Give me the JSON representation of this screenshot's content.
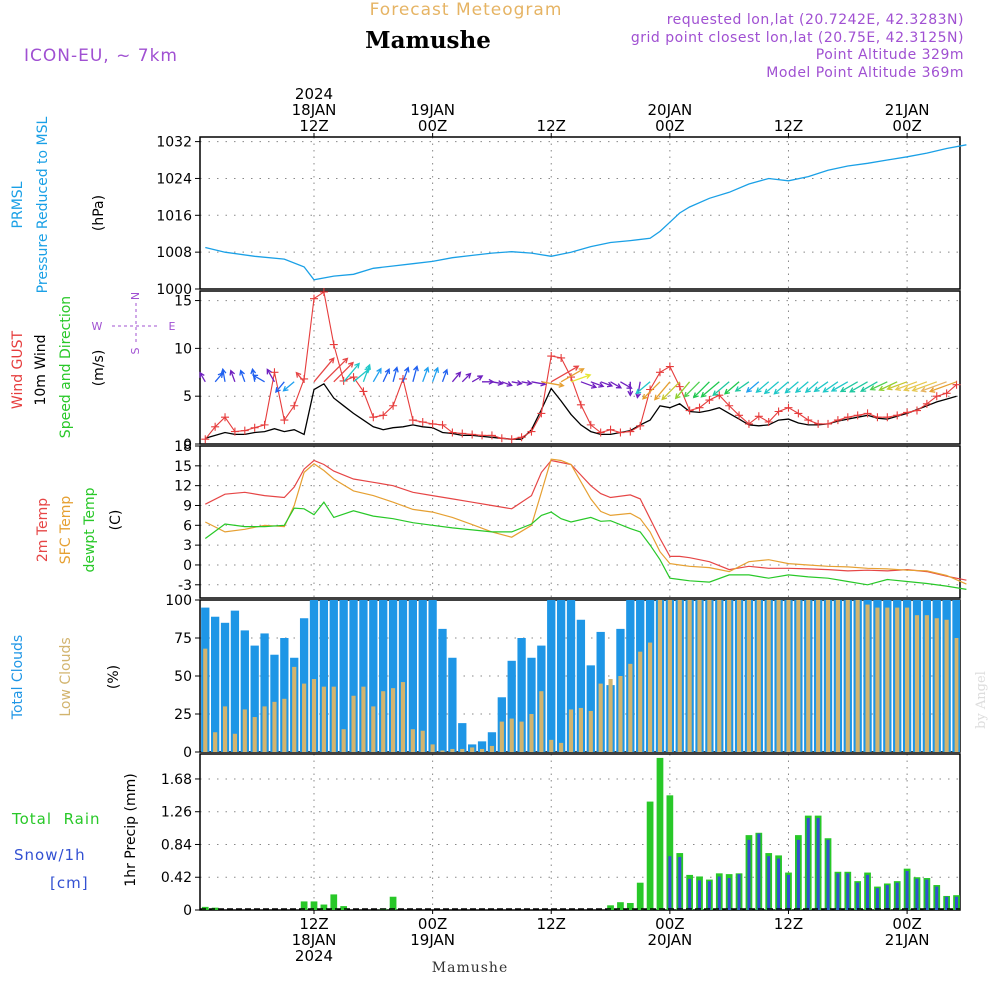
{
  "header": {
    "product": "Forecast Meteogram",
    "location": "Mamushe",
    "model": "ICON-EU, ~ 7km",
    "requested": "requested lon,lat (20.7242E, 42.3283N)",
    "gridpoint": "grid point closest lon,lat (20.75E, 42.3125N)",
    "point_alt": "Point Altitude 329m",
    "model_alt": "Model Point Altitude 369m",
    "footer": "Mamushe",
    "credit": "by Angel"
  },
  "time_axis": {
    "top": [
      {
        "hour": 12,
        "lines": [
          "2024",
          "18JAN",
          "12Z"
        ]
      },
      {
        "hour": 24,
        "lines": [
          "19JAN",
          "00Z"
        ]
      },
      {
        "hour": 36,
        "lines": [
          "12Z"
        ]
      },
      {
        "hour": 48,
        "lines": [
          "20JAN",
          "00Z"
        ]
      },
      {
        "hour": 60,
        "lines": [
          "12Z"
        ]
      },
      {
        "hour": 72,
        "lines": [
          "21JAN",
          "00Z"
        ]
      }
    ],
    "bottom": [
      {
        "hour": 12,
        "lines": [
          "12Z",
          "18JAN",
          "2024"
        ]
      },
      {
        "hour": 24,
        "lines": [
          "00Z",
          "19JAN"
        ]
      },
      {
        "hour": 36,
        "lines": [
          "12Z"
        ]
      },
      {
        "hour": 48,
        "lines": [
          "00Z",
          "20JAN"
        ]
      },
      {
        "hour": 60,
        "lines": [
          "12Z"
        ]
      },
      {
        "hour": 72,
        "lines": [
          "00Z",
          "21JAN"
        ]
      }
    ]
  },
  "panels": {
    "pressure": {
      "labels": [
        "PRMSL",
        "Pressure Reduced to MSL"
      ],
      "unit": "(hPa)",
      "ticks": [
        "1000",
        "1008",
        "1016",
        "1024",
        "1032"
      ]
    },
    "wind": {
      "labels": [
        "Wind GUST",
        "10m Wind",
        "Speed and Direction"
      ],
      "unit": "(m/s)",
      "ticks": [
        "0",
        "5",
        "10",
        "15"
      ],
      "compass": {
        "w": "W",
        "e": "E",
        "n": "N",
        "s": "S"
      }
    },
    "temp": {
      "labels": [
        "2m Temp",
        "SFC Temp",
        "dewpt Temp"
      ],
      "unit": "(C)",
      "ticks": [
        "-3",
        "0",
        "3",
        "6",
        "9",
        "12",
        "15",
        "18"
      ]
    },
    "clouds": {
      "labels": [
        "Total Clouds",
        "Low Clouds"
      ],
      "unit": "(%)",
      "ticks": [
        "0",
        "25",
        "50",
        "75",
        "100"
      ]
    },
    "precip": {
      "labels": [
        "Total  Rain",
        "Snow/1h",
        "[cm]"
      ],
      "axis_label": "1hr Precip (mm)",
      "ticks": [
        "0",
        "0.42",
        "0.84",
        "1.26",
        "1.68"
      ]
    }
  },
  "colors": {
    "pressure": "#1aa0e6",
    "gust": "#e63c3c",
    "wind": "#000000",
    "temp2m": "#e64646",
    "sfc": "#e6a032",
    "dewpt": "#28c828",
    "total_cloud": "#1e96e6",
    "low_cloud": "#d2b46e",
    "rain": "#28c828",
    "snow": "#3250d2",
    "title_orange": "#e6b464",
    "purple": "#a050d2"
  },
  "chart_data": {
    "type": "line",
    "x_unit": "hours from 18JAN 00Z",
    "x_range": [
      1,
      78
    ],
    "pressure": {
      "ylim": [
        1000,
        1033
      ],
      "x": [
        1,
        3,
        6,
        9,
        11,
        12,
        14,
        16,
        18,
        20,
        22,
        24,
        26,
        28,
        30,
        32,
        34,
        36,
        38,
        40,
        42,
        44,
        46,
        47,
        48,
        49,
        50,
        52,
        54,
        56,
        58,
        60,
        62,
        64,
        66,
        68,
        70,
        72,
        74,
        76,
        78
      ],
      "values": [
        1009.0,
        1008.0,
        1007.1,
        1006.5,
        1004.8,
        1002.0,
        1002.8,
        1003.2,
        1004.5,
        1005.0,
        1005.5,
        1006.0,
        1006.8,
        1007.3,
        1007.8,
        1008.1,
        1007.8,
        1007.1,
        1008.0,
        1009.2,
        1010.1,
        1010.5,
        1011.0,
        1012.5,
        1014.5,
        1016.5,
        1017.8,
        1019.7,
        1021.0,
        1022.8,
        1024.0,
        1023.5,
        1024.4,
        1025.8,
        1026.7,
        1027.3,
        1028.0,
        1028.7,
        1029.5,
        1030.5,
        1031.3
      ]
    },
    "wind": {
      "ylim": [
        0,
        16
      ],
      "x": [
        1,
        2,
        3,
        4,
        5,
        6,
        7,
        8,
        9,
        10,
        11,
        12,
        13,
        14,
        15,
        16,
        17,
        18,
        19,
        20,
        21,
        22,
        23,
        24,
        25,
        26,
        27,
        28,
        29,
        30,
        31,
        32,
        33,
        34,
        35,
        36,
        37,
        38,
        39,
        40,
        41,
        42,
        43,
        44,
        45,
        46,
        47,
        48,
        49,
        50,
        51,
        52,
        53,
        54,
        55,
        56,
        57,
        58,
        59,
        60,
        61,
        62,
        63,
        64,
        65,
        66,
        67,
        68,
        69,
        70,
        71,
        72,
        73,
        74,
        75,
        76,
        77,
        78
      ],
      "gust": [
        0.5,
        1.8,
        2.8,
        1.3,
        1.4,
        1.7,
        2.0,
        7.5,
        2.5,
        4.0,
        6.8,
        15.2,
        15.9,
        10.4,
        6.6,
        7.0,
        5.5,
        2.8,
        3.0,
        4.0,
        6.8,
        2.5,
        2.3,
        2.1,
        2.0,
        1.2,
        1.1,
        1.0,
        0.9,
        0.9,
        0.6,
        0.5,
        0.7,
        1.3,
        3.2,
        9.2,
        9.0,
        7.0,
        4.1,
        2.0,
        1.2,
        1.5,
        1.2,
        1.3,
        1.9,
        5.7,
        7.5,
        8.1,
        6.0,
        3.5,
        3.8,
        4.6,
        5.1,
        4.0,
        3.0,
        2.1,
        2.9,
        2.3,
        3.4,
        3.8,
        3.2,
        2.5,
        2.1,
        2.1,
        2.5,
        2.8,
        3.0,
        3.2,
        2.8,
        2.8,
        3.0,
        3.3,
        3.5,
        4.2,
        5.0,
        5.3,
        6.2,
        6.5
      ],
      "speed": [
        0.6,
        0.9,
        1.2,
        1.0,
        1.0,
        1.2,
        1.3,
        1.6,
        1.3,
        1.5,
        1.0,
        5.7,
        6.3,
        4.8,
        4.0,
        3.2,
        2.5,
        1.8,
        1.5,
        1.7,
        1.8,
        2.0,
        1.8,
        1.7,
        1.2,
        1.1,
        0.9,
        0.9,
        0.8,
        0.7,
        0.6,
        0.5,
        0.5,
        1.5,
        3.6,
        5.8,
        4.5,
        3.1,
        2.0,
        1.3,
        1.0,
        1.0,
        1.2,
        1.4,
        2.0,
        2.5,
        4.0,
        3.8,
        4.2,
        3.4,
        3.3,
        3.5,
        3.8,
        3.2,
        2.6,
        2.0,
        1.9,
        2.0,
        2.5,
        2.6,
        2.2,
        2.0,
        2.0,
        2.1,
        2.4,
        2.6,
        2.8,
        3.0,
        2.7,
        2.6,
        2.9,
        3.2,
        3.6,
        4.0,
        4.4,
        4.7,
        5.0,
        5.0
      ],
      "arrow_dir_deg": [
        330,
        40,
        350,
        340,
        340,
        350,
        300,
        330,
        220,
        230,
        320,
        40,
        45,
        45,
        40,
        50,
        20,
        30,
        25,
        15,
        20,
        15,
        20,
        20,
        20,
        40,
        45,
        60,
        90,
        100,
        110,
        100,
        100,
        100,
        100,
        60,
        60,
        70,
        110,
        110,
        110,
        120,
        120,
        180,
        190,
        230,
        225,
        220,
        225,
        220,
        225,
        225,
        230,
        230,
        230,
        235,
        230,
        230,
        230,
        230,
        230,
        230,
        230,
        235,
        235,
        240,
        240,
        240,
        240,
        245,
        245,
        250,
        250,
        250,
        250,
        250,
        250,
        255
      ],
      "arrow_color": [
        "#7020c0",
        "#2060f0",
        "#2060f0",
        "#7020c0",
        "#2060f0",
        "#2060f0",
        "#2060f0",
        "#7020c0",
        "#2060f0",
        "#20a0f0",
        "#e64646",
        "#e64646",
        "#e64646",
        "#e64646",
        "#20c8c8",
        "#20c8c8",
        "#20c8c8",
        "#20a0f0",
        "#2060f0",
        "#2060f0",
        "#2060f0",
        "#2060f0",
        "#20a0f0",
        "#20a0f0",
        "#2060f0",
        "#7020c0",
        "#7020c0",
        "#7020c0",
        "#7020c0",
        "#7020c0",
        "#7020c0",
        "#7020c0",
        "#7020c0",
        "#7020c0",
        "#e6a032",
        "#e64646",
        "#e6a032",
        "#e6e632",
        "#7020c0",
        "#7020c0",
        "#7020c0",
        "#7020c0",
        "#7020c0",
        "#7020c0",
        "#7020c0",
        "#20c8c8",
        "#e6a032",
        "#e6a032",
        "#c8c832",
        "#90d030",
        "#50d050",
        "#20c850",
        "#20c850",
        "#20c8a0",
        "#20c850",
        "#20c8a0",
        "#20a0f0",
        "#20c8c8",
        "#20c8c8",
        "#20c8c8",
        "#20c8c8",
        "#20c8c8",
        "#20c8c8",
        "#20c8c8",
        "#20c8c8",
        "#20c8c8",
        "#20c8a0",
        "#20c8a0",
        "#20c8a0",
        "#50d050",
        "#90d030",
        "#c8c832",
        "#e6c850",
        "#e6c850",
        "#e6c850",
        "#e6b464",
        "#e6a032",
        "#e6a032"
      ]
    },
    "temperature": {
      "ylim": [
        -5,
        18
      ],
      "x": [
        1,
        3,
        5,
        7,
        9,
        10,
        11,
        12,
        13,
        14,
        16,
        18,
        20,
        22,
        24,
        26,
        28,
        30,
        32,
        34,
        35,
        36,
        37,
        38,
        40,
        41,
        42,
        44,
        45,
        46,
        47,
        48,
        49,
        50,
        52,
        54,
        56,
        58,
        60,
        62,
        64,
        66,
        68,
        70,
        72,
        74,
        76,
        78
      ],
      "temp2m": [
        9.2,
        10.7,
        11.0,
        10.5,
        10.2,
        11.8,
        14.5,
        15.8,
        15.2,
        14.2,
        13.0,
        12.5,
        12.0,
        11.0,
        10.5,
        10.0,
        9.5,
        9.0,
        8.5,
        10.5,
        14.0,
        15.8,
        15.5,
        15.2,
        12.0,
        10.8,
        10.2,
        10.6,
        10.0,
        7.0,
        4.0,
        1.3,
        1.3,
        1.1,
        0.5,
        -0.7,
        -0.2,
        -0.5,
        -0.5,
        -0.6,
        -0.7,
        -0.9,
        -0.8,
        -0.9,
        -0.7,
        -1.0,
        -1.7,
        -2.3
      ],
      "sfc": [
        6.5,
        5.0,
        5.4,
        6.0,
        5.8,
        9.0,
        14.0,
        15.3,
        14.3,
        13.0,
        11.2,
        10.5,
        9.5,
        8.4,
        8.0,
        7.2,
        6.1,
        5.0,
        4.2,
        6.0,
        11.0,
        16.0,
        15.8,
        15.2,
        10.0,
        8.1,
        7.5,
        7.8,
        7.0,
        5.0,
        2.0,
        0.2,
        0.0,
        -0.2,
        -0.4,
        -1.0,
        0.5,
        0.8,
        0.2,
        0.0,
        -0.2,
        -0.3,
        -0.5,
        -0.6,
        -0.8,
        -0.9,
        -1.6,
        -2.9
      ],
      "dewpt": [
        4.0,
        6.2,
        5.8,
        5.8,
        6.0,
        8.6,
        8.5,
        7.6,
        9.5,
        7.2,
        8.2,
        7.4,
        7.0,
        6.4,
        6.0,
        5.6,
        5.3,
        5.0,
        5.0,
        6.2,
        7.5,
        8.0,
        7.0,
        6.5,
        7.2,
        6.6,
        6.7,
        5.5,
        5.0,
        3.0,
        0.8,
        -2.0,
        -2.2,
        -2.4,
        -2.6,
        -1.5,
        -1.5,
        -2.0,
        -1.5,
        -1.8,
        -2.0,
        -2.5,
        -3.0,
        -2.2,
        -2.5,
        -2.8,
        -3.2,
        -3.7
      ]
    },
    "clouds": {
      "ylim": [
        0,
        100
      ],
      "x": [
        1,
        2,
        3,
        4,
        5,
        6,
        7,
        8,
        9,
        10,
        11,
        12,
        13,
        14,
        15,
        16,
        17,
        18,
        19,
        20,
        21,
        22,
        23,
        24,
        25,
        26,
        27,
        28,
        29,
        30,
        31,
        32,
        33,
        34,
        35,
        36,
        37,
        38,
        39,
        40,
        41,
        42,
        43,
        44,
        45,
        46,
        47,
        48,
        49,
        50,
        51,
        52,
        53,
        54,
        55,
        56,
        57,
        58,
        59,
        60,
        61,
        62,
        63,
        64,
        65,
        66,
        67,
        68,
        69,
        70,
        71,
        72,
        73,
        74,
        75,
        76,
        77,
        78
      ],
      "total": [
        95,
        89,
        85,
        93,
        80,
        70,
        78,
        64,
        75,
        62,
        88,
        100,
        100,
        100,
        100,
        100,
        100,
        100,
        100,
        100,
        100,
        100,
        100,
        100,
        81,
        62,
        19,
        5,
        7,
        13,
        36,
        60,
        75,
        62,
        70,
        100,
        100,
        100,
        87,
        57,
        79,
        44,
        81,
        100,
        100,
        100,
        100,
        100,
        100,
        100,
        100,
        100,
        100,
        100,
        100,
        100,
        100,
        100,
        100,
        100,
        100,
        100,
        100,
        100,
        100,
        100,
        100,
        100,
        100,
        100,
        100,
        100,
        100,
        100,
        100,
        100,
        100,
        93
      ],
      "low": [
        68,
        13,
        30,
        12,
        28,
        23,
        30,
        33,
        35,
        56,
        45,
        48,
        43,
        43,
        15,
        37,
        43,
        30,
        40,
        42,
        46,
        15,
        14,
        5,
        1,
        2,
        2,
        3,
        2,
        4,
        20,
        22,
        20,
        25,
        40,
        8,
        6,
        28,
        29,
        27,
        45,
        48,
        50,
        58,
        66,
        72,
        100,
        100,
        100,
        100,
        100,
        100,
        100,
        100,
        100,
        100,
        100,
        100,
        100,
        100,
        100,
        100,
        100,
        100,
        100,
        100,
        100,
        97,
        95,
        95,
        95,
        95,
        90,
        90,
        88,
        87,
        75,
        35
      ]
    },
    "precip": {
      "ylim": [
        0,
        2.0
      ],
      "x": [
        1,
        2,
        3,
        4,
        5,
        6,
        7,
        8,
        9,
        10,
        11,
        12,
        13,
        14,
        15,
        16,
        17,
        18,
        19,
        20,
        21,
        22,
        23,
        24,
        25,
        26,
        27,
        28,
        29,
        30,
        31,
        32,
        33,
        34,
        35,
        36,
        37,
        38,
        39,
        40,
        41,
        42,
        43,
        44,
        45,
        46,
        47,
        48,
        49,
        50,
        51,
        52,
        53,
        54,
        55,
        56,
        57,
        58,
        59,
        60,
        61,
        62,
        63,
        64,
        65,
        66,
        67,
        68,
        69,
        70,
        71,
        72,
        73,
        74,
        75,
        76,
        77,
        78
      ],
      "rain": [
        0.04,
        0.03,
        0,
        0,
        0,
        0,
        0,
        0,
        0,
        0,
        0.11,
        0.11,
        0.07,
        0.2,
        0.05,
        0,
        0,
        0,
        0.02,
        0.17,
        0,
        0,
        0,
        0,
        0,
        0,
        0,
        0,
        0,
        0,
        0,
        0,
        0,
        0,
        0,
        0,
        0,
        0,
        0,
        0,
        0,
        0.06,
        0.1,
        0.09,
        0.35,
        1.39,
        1.95,
        1.47,
        0.73,
        0.45,
        0.43,
        0.39,
        0.47,
        0.46,
        0.47,
        0.96,
        0.99,
        0.73,
        0.7,
        0.48,
        0.96,
        1.21,
        1.21,
        0.92,
        0.49,
        0.49,
        0.37,
        0.48,
        0.3,
        0.34,
        0.37,
        0.53,
        0.42,
        0.41,
        0.32,
        0.18,
        0.19,
        0.11
      ],
      "snow": [
        0,
        0,
        0,
        0,
        0,
        0,
        0,
        0,
        0,
        0,
        0,
        0,
        0,
        0,
        0,
        0,
        0,
        0,
        0,
        0,
        0,
        0,
        0,
        0,
        0,
        0,
        0,
        0,
        0,
        0,
        0,
        0,
        0,
        0,
        0,
        0,
        0,
        0,
        0,
        0,
        0,
        0,
        0,
        0,
        0,
        0,
        0,
        0.69,
        0.68,
        0.4,
        0.38,
        0.37,
        0.43,
        0.41,
        0.46,
        0.9,
        0.98,
        0.69,
        0.66,
        0.45,
        0.9,
        1.18,
        1.18,
        0.9,
        0.47,
        0.47,
        0.35,
        0.45,
        0.28,
        0.32,
        0.35,
        0.5,
        0.4,
        0.39,
        0.3,
        0.17,
        0.17,
        0.1
      ]
    }
  }
}
